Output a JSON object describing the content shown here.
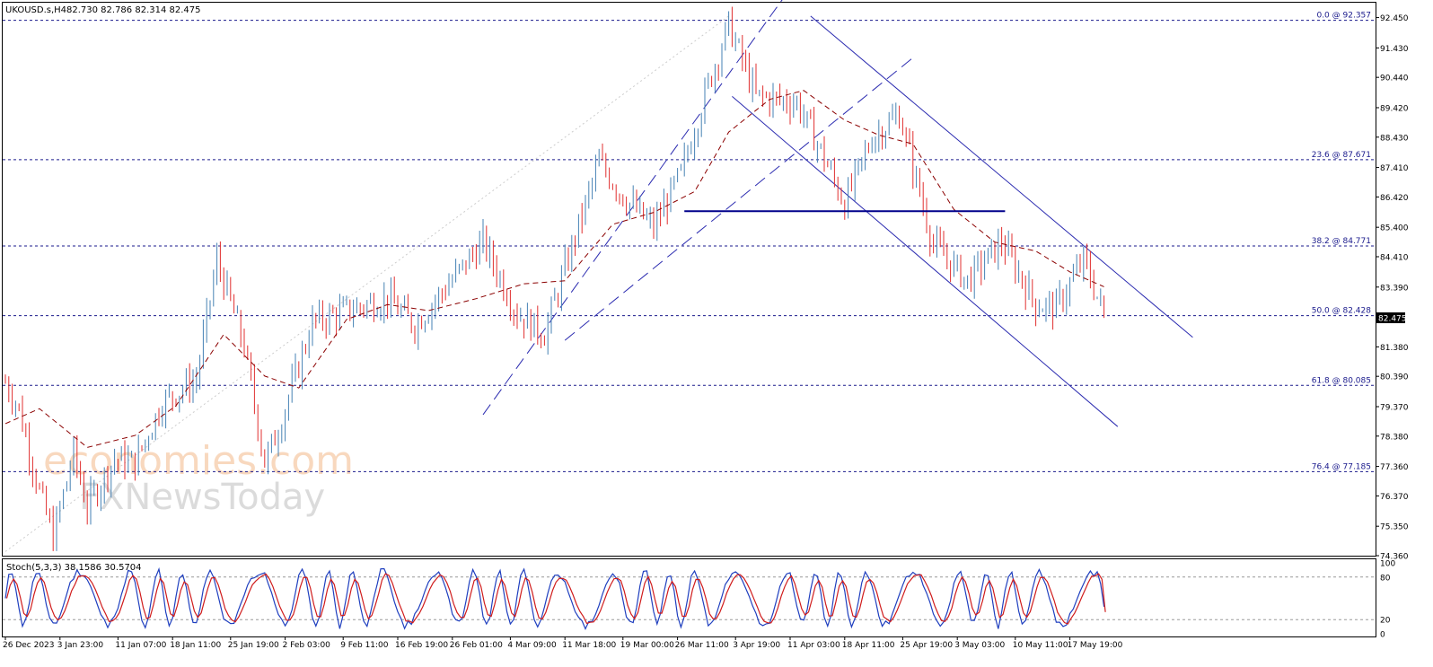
{
  "header": {
    "symbol_info": "UKOUSD.s,H4",
    "ohlc": "82.730 82.786 82.314 82.475"
  },
  "watermark": {
    "line1": "economies.com",
    "line2": "FXNewsToday"
  },
  "chart_data": {
    "type": "candlestick",
    "symbol": "UKOUSD.s",
    "timeframe": "H4",
    "price_axis": {
      "ylim": [
        74.36,
        92.95
      ],
      "ticks": [
        "92.450",
        "91.430",
        "90.440",
        "89.420",
        "88.430",
        "87.410",
        "86.420",
        "85.400",
        "84.410",
        "83.390",
        "82.475",
        "81.380",
        "80.390",
        "79.370",
        "78.380",
        "77.360",
        "76.370",
        "75.350",
        "74.360"
      ]
    },
    "current_price": "82.475",
    "time_axis": {
      "labels": [
        "26 Dec 2023",
        "3 Jan 23:00",
        "11 Jan 07:00",
        "18 Jan 11:00",
        "25 Jan 19:00",
        "2 Feb 03:00",
        "9 Feb 11:00",
        "16 Feb 19:00",
        "26 Feb 01:00",
        "4 Mar 09:00",
        "11 Mar 18:00",
        "19 Mar 00:00",
        "26 Mar 11:00",
        "3 Apr 19:00",
        "11 Apr 03:00",
        "18 Apr 11:00",
        "25 Apr 19:00",
        "3 May 03:00",
        "10 May 11:00",
        "17 May 19:00"
      ]
    },
    "price_path": [
      [
        0,
        80.2
      ],
      [
        4,
        79.3
      ],
      [
        10,
        76.5
      ],
      [
        14,
        75.0
      ],
      [
        20,
        77.8
      ],
      [
        24,
        76.0
      ],
      [
        32,
        77.6
      ],
      [
        38,
        77.5
      ],
      [
        46,
        79.5
      ],
      [
        56,
        80.3
      ],
      [
        62,
        84.3
      ],
      [
        70,
        81.4
      ],
      [
        76,
        77.5
      ],
      [
        80,
        78.6
      ],
      [
        90,
        82.2
      ],
      [
        100,
        82.6
      ],
      [
        112,
        83.0
      ],
      [
        120,
        82.1
      ],
      [
        130,
        83.5
      ],
      [
        140,
        84.9
      ],
      [
        150,
        82.5
      ],
      [
        158,
        81.8
      ],
      [
        164,
        84.0
      ],
      [
        174,
        87.6
      ],
      [
        182,
        86.3
      ],
      [
        190,
        85.4
      ],
      [
        198,
        87.2
      ],
      [
        206,
        90.2
      ],
      [
        212,
        92.2
      ],
      [
        220,
        89.8
      ],
      [
        232,
        89.6
      ],
      [
        238,
        88.2
      ],
      [
        246,
        86.2
      ],
      [
        254,
        88.4
      ],
      [
        262,
        89.2
      ],
      [
        272,
        84.8
      ],
      [
        282,
        83.6
      ],
      [
        292,
        84.9
      ],
      [
        302,
        82.8
      ],
      [
        308,
        82.7
      ],
      [
        316,
        84.3
      ],
      [
        322,
        82.475
      ]
    ],
    "ma_path": [
      [
        0,
        78.8
      ],
      [
        10,
        79.3
      ],
      [
        24,
        78.0
      ],
      [
        38,
        78.4
      ],
      [
        50,
        79.4
      ],
      [
        64,
        81.8
      ],
      [
        76,
        80.4
      ],
      [
        86,
        80.0
      ],
      [
        100,
        82.3
      ],
      [
        112,
        82.8
      ],
      [
        124,
        82.6
      ],
      [
        138,
        83.0
      ],
      [
        152,
        83.5
      ],
      [
        164,
        83.6
      ],
      [
        178,
        85.5
      ],
      [
        190,
        85.9
      ],
      [
        202,
        86.6
      ],
      [
        212,
        88.6
      ],
      [
        224,
        89.7
      ],
      [
        234,
        90.0
      ],
      [
        246,
        89.0
      ],
      [
        256,
        88.5
      ],
      [
        266,
        88.2
      ],
      [
        278,
        86.0
      ],
      [
        290,
        84.9
      ],
      [
        302,
        84.6
      ],
      [
        312,
        83.9
      ],
      [
        322,
        83.4
      ]
    ],
    "fibonacci": [
      {
        "label": "0.0 @ 92.357",
        "price": 92.357
      },
      {
        "label": "23.6 @ 87.671",
        "price": 87.671
      },
      {
        "label": "38.2 @ 84.771",
        "price": 84.771
      },
      {
        "label": "50.0 @ 82.428",
        "price": 82.428
      },
      {
        "label": "61.8 @ 80.085",
        "price": 80.085
      },
      {
        "label": "76.4 @ 77.185",
        "price": 77.185
      }
    ],
    "horizontal_line": {
      "price": 85.94
    },
    "stochastic": {
      "label": "Stoch(5,3,3) 38.1586 30.5704",
      "main": 38.1586,
      "signal": 30.5704,
      "ylim": [
        0,
        100
      ],
      "ticks": [
        "100",
        "80",
        "20",
        "0"
      ],
      "levels": [
        80,
        20
      ]
    }
  }
}
